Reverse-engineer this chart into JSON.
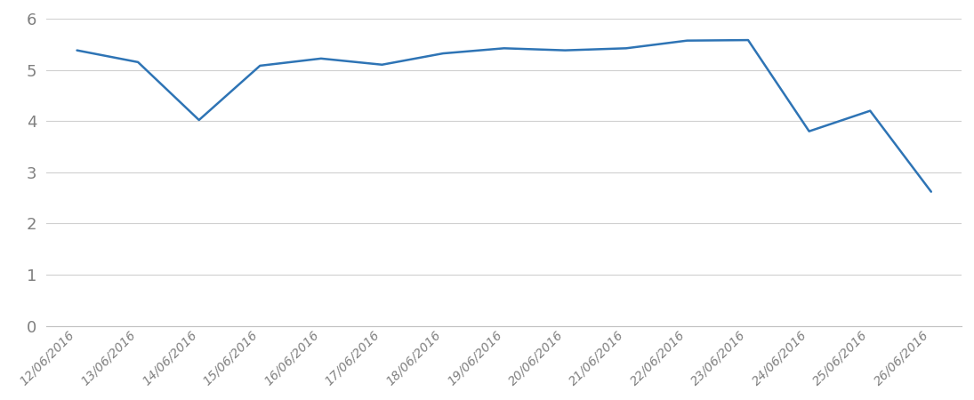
{
  "dates": [
    "12/06/2016",
    "13/06/2016",
    "14/06/2016",
    "15/06/2016",
    "16/06/2016",
    "17/06/2016",
    "18/06/2016",
    "19/06/2016",
    "20/06/2016",
    "21/06/2016",
    "22/06/2016",
    "23/06/2016",
    "24/06/2016",
    "25/06/2016",
    "26/06/2016"
  ],
  "values": [
    5.38,
    5.15,
    4.02,
    5.08,
    5.22,
    5.1,
    5.32,
    5.42,
    5.38,
    5.42,
    5.57,
    5.58,
    3.8,
    4.2,
    2.62
  ],
  "line_color": "#2E74B5",
  "line_width": 1.8,
  "background_color": "#ffffff",
  "grid_color": "#d0d0d0",
  "ylim": [
    0,
    6
  ],
  "yticks": [
    0,
    1,
    2,
    3,
    4,
    5,
    6
  ],
  "ytick_fontsize": 13,
  "xtick_fontsize": 10,
  "tick_label_color": "#808080",
  "spine_color": "#c0c0c0"
}
